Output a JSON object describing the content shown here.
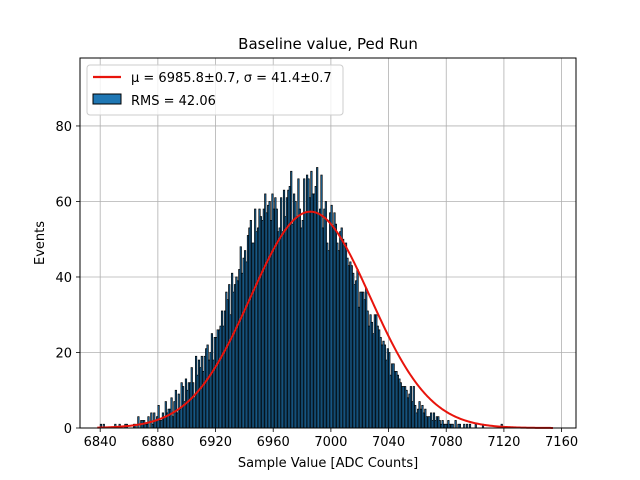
{
  "chart_data": {
    "type": "bar",
    "title": "Baseline value, Ped Run",
    "xlabel": "Sample Value [ADC Counts]",
    "ylabel": "Events",
    "xlim": [
      6826,
      7170
    ],
    "ylim": [
      0,
      98
    ],
    "xticks": [
      6840,
      6880,
      6920,
      6960,
      7000,
      7040,
      7080,
      7120,
      7160
    ],
    "yticks": [
      0,
      20,
      40,
      60,
      80
    ],
    "grid": true,
    "legend_position": "top-left",
    "colors": {
      "bar_fill": "#1f77b4",
      "bar_edge": "#000000",
      "fit_line": "#e8140c",
      "grid": "#b0b0b0"
    },
    "histogram": {
      "name": "RMS = 42.06",
      "x_start": 6838,
      "bin_width": 1,
      "counts": [
        0,
        0,
        1,
        0,
        1,
        0,
        0,
        0,
        0,
        0,
        0,
        0,
        1,
        0,
        0,
        1,
        0,
        0,
        0,
        1,
        1,
        0,
        0,
        0,
        0,
        1,
        1,
        0,
        3,
        0,
        2,
        2,
        2,
        1,
        1,
        3,
        0,
        4,
        1,
        4,
        2,
        3,
        6,
        2,
        2,
        4,
        3,
        7,
        4,
        5,
        5,
        8,
        3,
        7,
        10,
        4,
        9,
        5,
        12,
        11,
        7,
        13,
        10,
        12,
        12,
        16,
        12,
        8,
        19,
        14,
        18,
        16,
        19,
        15,
        19,
        21,
        22,
        18,
        20,
        25,
        18,
        24,
        24,
        26,
        26,
        27,
        31,
        27,
        31,
        36,
        34,
        38,
        30,
        41,
        36,
        38,
        40,
        39,
        42,
        48,
        41,
        45,
        47,
        44,
        51,
        53,
        55,
        49,
        49,
        58,
        52,
        53,
        58,
        56,
        55,
        58,
        62,
        57,
        59,
        60,
        55,
        62,
        58,
        61,
        58,
        52,
        53,
        61,
        52,
        63,
        56,
        61,
        63,
        64,
        68,
        54,
        62,
        60,
        56,
        66,
        58,
        53,
        55,
        66,
        57,
        67,
        66,
        61,
        68,
        62,
        62,
        64,
        69,
        57,
        58,
        67,
        53,
        58,
        60,
        49,
        47,
        57,
        59,
        53,
        57,
        54,
        49,
        47,
        52,
        53,
        50,
        48,
        49,
        45,
        43,
        44,
        43,
        41,
        38,
        39,
        42,
        32,
        36,
        36,
        36,
        34,
        37,
        31,
        27,
        30,
        28,
        25,
        30,
        30,
        27,
        26,
        24,
        22,
        23,
        22,
        18,
        21,
        20,
        14,
        17,
        17,
        15,
        15,
        14,
        13,
        12,
        11,
        11,
        11,
        10,
        8,
        9,
        11,
        7,
        11,
        6,
        4,
        5,
        7,
        5,
        6,
        4,
        5,
        3,
        3,
        3,
        4,
        2,
        4,
        2,
        3,
        3,
        2,
        1,
        2,
        1,
        1,
        1,
        2,
        1,
        1,
        1,
        0,
        2,
        0,
        1,
        1,
        0,
        0,
        1,
        0,
        1,
        0,
        1,
        0,
        0,
        0,
        1,
        0,
        0,
        0,
        0,
        1,
        0,
        0,
        0,
        0,
        0,
        0,
        0,
        0,
        0,
        0,
        0,
        0,
        1,
        0,
        0,
        0,
        0,
        0,
        0,
        0,
        0,
        0,
        0,
        0,
        0,
        0,
        0,
        0
      ]
    },
    "fit": {
      "name": "μ = 6985.8±0.7, σ = 41.4±0.7",
      "mu": 6985.8,
      "sigma": 41.4,
      "amplitude": 57.3,
      "x_range": [
        6838,
        7154
      ]
    }
  }
}
